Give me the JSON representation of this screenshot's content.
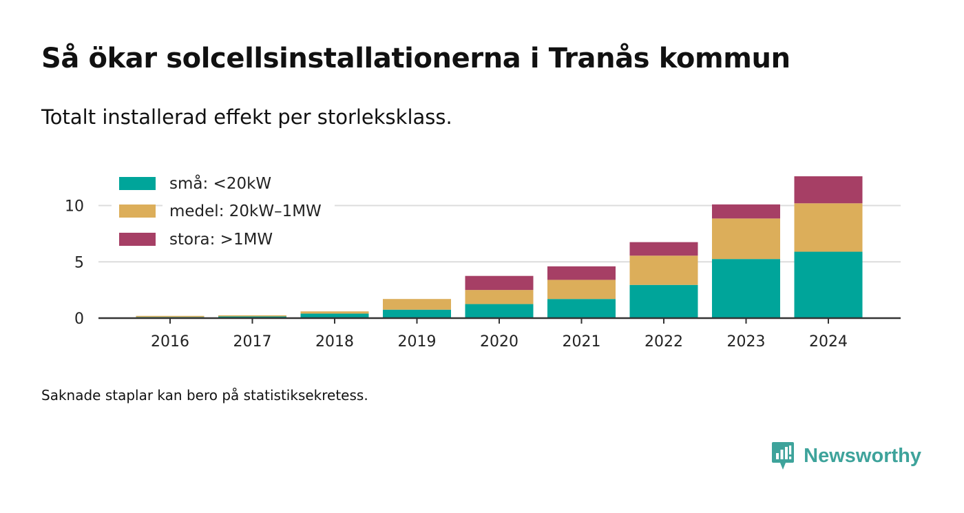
{
  "header": {
    "title": "Så ökar solcellsinstallationerna i Tranås kommun",
    "subtitle": "Totalt installerad effekt per storleksklass."
  },
  "footer": {
    "note": "Saknade staplar kan bero på statistiksekretess.",
    "brand": "Newsworthy"
  },
  "chart_data": {
    "type": "bar",
    "stacked": true,
    "categories": [
      "2016",
      "2017",
      "2018",
      "2019",
      "2020",
      "2021",
      "2022",
      "2023",
      "2024"
    ],
    "series": [
      {
        "name": "små: <20kW",
        "color": "#00a59a",
        "values": [
          0.1,
          0.15,
          0.4,
          0.75,
          1.25,
          1.7,
          2.95,
          5.25,
          5.9
        ]
      },
      {
        "name": "medel: 20kW–1MW",
        "color": "#dcae5a",
        "values": [
          0.1,
          0.1,
          0.2,
          0.95,
          1.25,
          1.7,
          2.6,
          3.6,
          4.3
        ]
      },
      {
        "name": "stora: >1MW",
        "color": "#a63f65",
        "values": [
          0,
          0,
          0,
          0,
          1.25,
          1.2,
          1.2,
          1.25,
          2.4
        ]
      }
    ],
    "yticks": [
      0,
      5,
      10
    ],
    "ylim": [
      0,
      12.6
    ],
    "grid": true,
    "legend": "top-left"
  }
}
